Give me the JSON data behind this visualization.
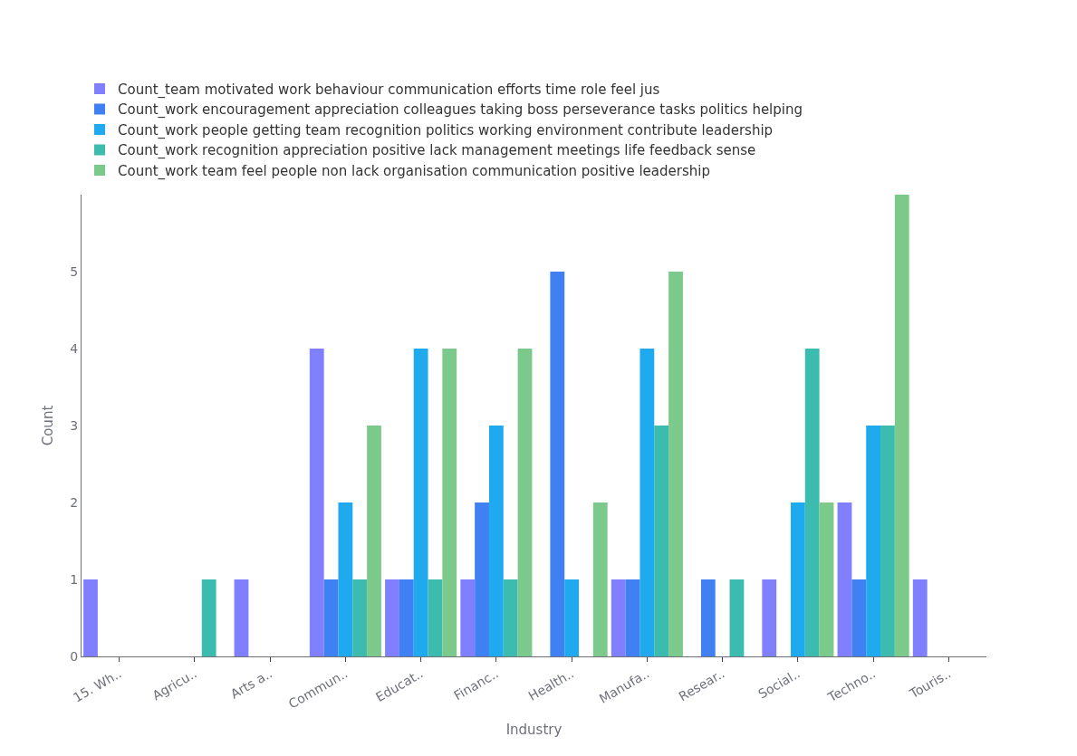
{
  "chart_data": {
    "type": "bar",
    "xlabel": "Industry",
    "ylabel": "Count",
    "categories": [
      "15. Wh..",
      "Agricu..",
      "Arts a..",
      "Commun..",
      "Educat..",
      "Financ..",
      "Health..",
      "Manufa..",
      "Resear..",
      "Social..",
      "Techno..",
      "Touris.."
    ],
    "series": [
      {
        "name": "Count_team motivated work behaviour communication efforts time role feel jus",
        "color": "#8080ff",
        "values": [
          1,
          0,
          1,
          4,
          1,
          1,
          0,
          1,
          0,
          1,
          2,
          1
        ]
      },
      {
        "name": "Count_work encouragement appreciation colleagues taking boss perseverance tasks politics helping",
        "color": "#3f80f2",
        "values": [
          0,
          0,
          0,
          1,
          1,
          2,
          5,
          1,
          1,
          0,
          1,
          0
        ]
      },
      {
        "name": "Count_work people getting team recognition politics working environment contribute leadership",
        "color": "#1fa9ef",
        "values": [
          0,
          0,
          0,
          2,
          4,
          3,
          1,
          4,
          0,
          2,
          3,
          0
        ]
      },
      {
        "name": "Count_work recognition appreciation positive lack management meetings life feedback sense",
        "color": "#3bbcae",
        "values": [
          0,
          1,
          0,
          1,
          1,
          1,
          0,
          3,
          1,
          4,
          3,
          0
        ]
      },
      {
        "name": "Count_work team feel people non lack organisation communication positive leadership",
        "color": "#7cca8b",
        "values": [
          0,
          0,
          0,
          3,
          4,
          4,
          2,
          5,
          0,
          2,
          6,
          0
        ]
      }
    ],
    "ylim": [
      0,
      6
    ],
    "yticks": [
      0,
      1,
      2,
      3,
      4,
      5
    ],
    "grid": false,
    "legend": "top left"
  }
}
